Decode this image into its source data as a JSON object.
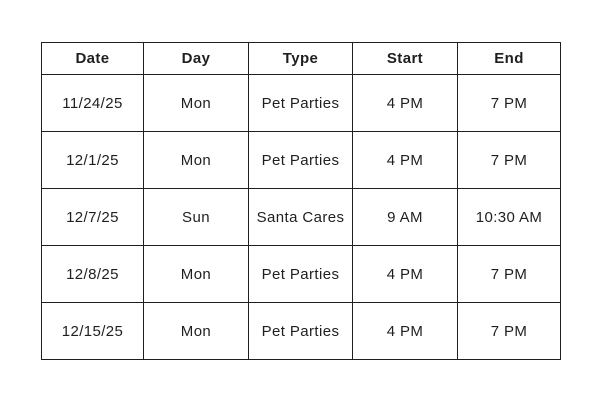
{
  "table": {
    "columns": [
      "Date",
      "Day",
      "Type",
      "Start",
      "End"
    ],
    "rows": [
      [
        "11/24/25",
        "Mon",
        "Pet Parties",
        "4 PM",
        "7 PM"
      ],
      [
        "12/1/25",
        "Mon",
        "Pet Parties",
        "4 PM",
        "7 PM"
      ],
      [
        "12/7/25",
        "Sun",
        "Santa Cares",
        "9 AM",
        "10:30 AM"
      ],
      [
        "12/8/25",
        "Mon",
        "Pet Parties",
        "4 PM",
        "7 PM"
      ],
      [
        "12/15/25",
        "Mon",
        "Pet Parties",
        "4 PM",
        "7 PM"
      ]
    ]
  },
  "colors": {
    "border": "#1f1f1f",
    "text": "#1f1f1f",
    "background": "#ffffff"
  }
}
